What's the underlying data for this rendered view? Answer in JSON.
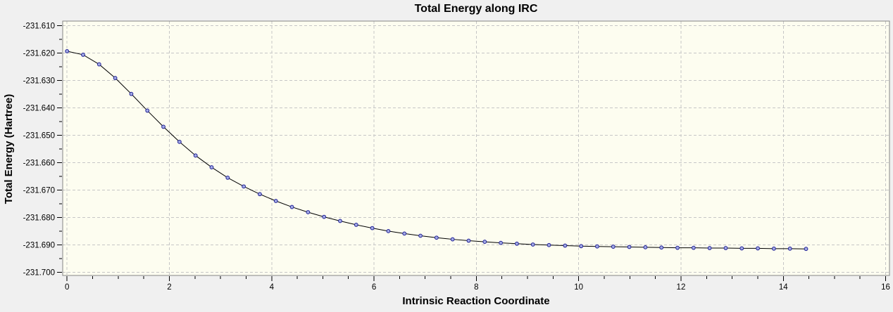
{
  "window": {
    "page_background": "#f0f0f0"
  },
  "chart_data": {
    "type": "line",
    "title": "Total Energy along IRC",
    "xlabel": "Intrinsic Reaction Coordinate",
    "ylabel": "Total Energy (Hartree)",
    "xlim": [
      -0.085,
      16.075
    ],
    "ylim": [
      -231.7012,
      -231.6083
    ],
    "x_ticks": [
      0,
      2,
      4,
      6,
      8,
      10,
      12,
      14,
      16
    ],
    "y_ticks": [
      -231.61,
      -231.62,
      -231.63,
      -231.64,
      -231.65,
      -231.66,
      -231.67,
      -231.68,
      -231.69,
      -231.7
    ],
    "y_tick_decimals": 3,
    "x_minor_step": 0.5,
    "y_minor_step": 0.005,
    "grid": "major-dashed",
    "legend": "none",
    "series": [
      {
        "name": "Total Energy",
        "x": [
          0,
          0.314,
          0.628,
          0.942,
          1.256,
          1.57,
          1.884,
          2.198,
          2.512,
          2.826,
          3.14,
          3.454,
          3.768,
          4.082,
          4.396,
          4.71,
          5.024,
          5.338,
          5.652,
          5.966,
          6.28,
          6.594,
          6.908,
          7.222,
          7.536,
          7.85,
          8.164,
          8.478,
          8.792,
          9.106,
          9.42,
          9.734,
          10.048,
          10.362,
          10.676,
          10.99,
          11.304,
          11.618,
          11.932,
          12.246,
          12.56,
          12.874,
          13.188,
          13.502,
          13.816,
          14.13,
          14.444
        ],
        "y": [
          -231.6193,
          -231.6206,
          -231.6241,
          -231.6291,
          -231.6349,
          -231.641,
          -231.6469,
          -231.6524,
          -231.6574,
          -231.6617,
          -231.6655,
          -231.6687,
          -231.6715,
          -231.674,
          -231.6762,
          -231.6781,
          -231.6798,
          -231.6813,
          -231.6827,
          -231.6839,
          -231.685,
          -231.6859,
          -231.6867,
          -231.6874,
          -231.688,
          -231.6885,
          -231.6889,
          -231.6893,
          -231.6896,
          -231.6899,
          -231.6901,
          -231.6903,
          -231.6905,
          -231.6906,
          -231.6907,
          -231.6908,
          -231.6909,
          -231.691,
          -231.6911,
          -231.6911,
          -231.6912,
          -231.6912,
          -231.6913,
          -231.6913,
          -231.6914,
          -231.6914,
          -231.6915
        ]
      }
    ],
    "colors": {
      "page_bg": "#f0f0f0",
      "plot_bg": "#fdfdf0",
      "grid": "#c6c6c6",
      "frame": "#858585",
      "line": "#000000",
      "marker_fill": "#a4abe4",
      "marker_stroke": "#1f1f96",
      "tick": "#000000",
      "text": "#000000"
    }
  }
}
